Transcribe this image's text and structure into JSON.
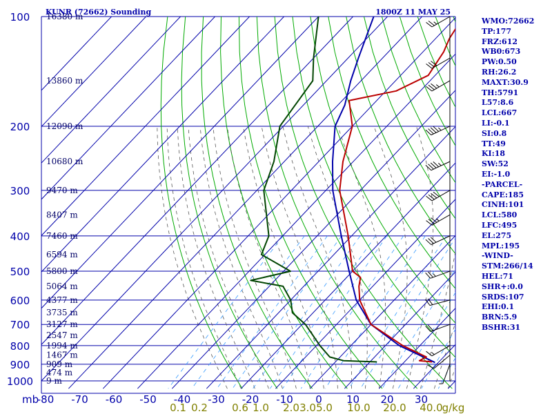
{
  "title_left": "KUNR (72662) Sounding",
  "title_right": "1800Z 11 MAY 25",
  "colors": {
    "grid": "#0000aa",
    "temperature": "#bb0000",
    "dewpoint": "#004400",
    "parcel": "#0000aa",
    "dry_adiabat": "#00aa00",
    "moist_adiabat": "#555555",
    "mixing_ratio": "#3399ff",
    "wind": "#000000",
    "mixing_label": "#808000"
  },
  "chart_data": {
    "type": "skew-t",
    "pressure_levels": [
      100,
      200,
      300,
      400,
      500,
      600,
      700,
      800,
      900,
      1000
    ],
    "pressure_unit": "mb",
    "temperature_ticks": [
      -80,
      -70,
      -60,
      -50,
      -40,
      -30,
      -20,
      -10,
      0,
      10,
      20,
      30
    ],
    "height_labels": [
      {
        "p": 100,
        "label": "16380 m"
      },
      {
        "p": 150,
        "label": "13860 m"
      },
      {
        "p": 200,
        "label": "12090 m"
      },
      {
        "p": 250,
        "label": "10680 m"
      },
      {
        "p": 300,
        "label": "9470 m"
      },
      {
        "p": 350,
        "label": "8407 m"
      },
      {
        "p": 400,
        "label": "7460 m"
      },
      {
        "p": 450,
        "label": "6594 m"
      },
      {
        "p": 500,
        "label": "5800 m"
      },
      {
        "p": 550,
        "label": "5064 m"
      },
      {
        "p": 600,
        "label": "4377 m"
      },
      {
        "p": 650,
        "label": "3735 m"
      },
      {
        "p": 700,
        "label": "3127 m"
      },
      {
        "p": 750,
        "label": "2547 m"
      },
      {
        "p": 800,
        "label": "1994 m"
      },
      {
        "p": 850,
        "label": "1467 m"
      },
      {
        "p": 900,
        "label": "909 m"
      },
      {
        "p": 950,
        "label": "474 m"
      },
      {
        "p": 1000,
        "label": "9 m"
      }
    ],
    "mixing_ratio_labels": [
      "0.1",
      "0.2",
      "0.6",
      "1.0",
      "2.0",
      "3.0",
      "5.0",
      "10.0",
      "20.0",
      "40.0",
      "g/kg"
    ],
    "temperature": [
      {
        "p": 887,
        "t": 28
      },
      {
        "p": 880,
        "t": 24
      },
      {
        "p": 860,
        "t": 25
      },
      {
        "p": 800,
        "t": 15
      },
      {
        "p": 700,
        "t": 0
      },
      {
        "p": 600,
        "t": -10
      },
      {
        "p": 550,
        "t": -14
      },
      {
        "p": 520,
        "t": -16
      },
      {
        "p": 500,
        "t": -20
      },
      {
        "p": 400,
        "t": -31
      },
      {
        "p": 300,
        "t": -46
      },
      {
        "p": 250,
        "t": -53
      },
      {
        "p": 200,
        "t": -60
      },
      {
        "p": 170,
        "t": -68
      },
      {
        "p": 160,
        "t": -57
      },
      {
        "p": 145,
        "t": -52
      },
      {
        "p": 125,
        "t": -54
      },
      {
        "p": 115,
        "t": -56
      },
      {
        "p": 100,
        "t": -58
      }
    ],
    "dewpoint": [
      {
        "p": 887,
        "t": 12
      },
      {
        "p": 880,
        "t": 2
      },
      {
        "p": 860,
        "t": -3
      },
      {
        "p": 800,
        "t": -9
      },
      {
        "p": 700,
        "t": -19
      },
      {
        "p": 650,
        "t": -26
      },
      {
        "p": 600,
        "t": -30
      },
      {
        "p": 550,
        "t": -36
      },
      {
        "p": 530,
        "t": -47
      },
      {
        "p": 500,
        "t": -38
      },
      {
        "p": 450,
        "t": -51
      },
      {
        "p": 400,
        "t": -54
      },
      {
        "p": 300,
        "t": -68
      },
      {
        "p": 250,
        "t": -73
      },
      {
        "p": 200,
        "t": -81
      },
      {
        "p": 150,
        "t": -84
      },
      {
        "p": 130,
        "t": -90
      },
      {
        "p": 100,
        "t": -100
      }
    ],
    "parcel": [
      {
        "p": 890,
        "t": 29
      },
      {
        "p": 800,
        "t": 14
      },
      {
        "p": 700,
        "t": 0
      },
      {
        "p": 600,
        "t": -11
      },
      {
        "p": 500,
        "t": -21
      },
      {
        "p": 400,
        "t": -33
      },
      {
        "p": 300,
        "t": -48
      },
      {
        "p": 250,
        "t": -56
      },
      {
        "p": 200,
        "t": -65
      },
      {
        "p": 175,
        "t": -68
      },
      {
        "p": 150,
        "t": -73
      },
      {
        "p": 130,
        "t": -77
      },
      {
        "p": 100,
        "t": -84
      }
    ],
    "wind_barbs": [
      {
        "p": 100,
        "dir": 240,
        "spd": 25
      },
      {
        "p": 130,
        "dir": 240,
        "spd": 30
      },
      {
        "p": 150,
        "dir": 240,
        "spd": 35
      },
      {
        "p": 200,
        "dir": 245,
        "spd": 45
      },
      {
        "p": 250,
        "dir": 245,
        "spd": 45
      },
      {
        "p": 300,
        "dir": 240,
        "spd": 40
      },
      {
        "p": 350,
        "dir": 240,
        "spd": 35
      },
      {
        "p": 400,
        "dir": 245,
        "spd": 30
      },
      {
        "p": 500,
        "dir": 250,
        "spd": 25
      },
      {
        "p": 600,
        "dir": 255,
        "spd": 20
      },
      {
        "p": 700,
        "dir": 250,
        "spd": 20
      },
      {
        "p": 800,
        "dir": 240,
        "spd": 15
      },
      {
        "p": 850,
        "dir": 230,
        "spd": 10
      },
      {
        "p": 900,
        "dir": 200,
        "spd": 5
      }
    ]
  },
  "indices": [
    "WMO:72662",
    "TP:177",
    "FRZ:612",
    "WB0:673",
    "PW:0.50",
    "RH:26.2",
    "MAXT:30.9",
    "TH:5791",
    "L57:8.6",
    "LCL:667",
    "LI:-0.1",
    "SI:0.8",
    "TT:49",
    "KI:18",
    "SW:52",
    "EI:-1.0",
    "-PARCEL-",
    "CAPE:185",
    "CINH:101",
    "LCL:580",
    "LFC:495",
    "EL:275",
    "MPL:195",
    "-WIND-",
    "STM:266/14",
    "HEL:71",
    "SHR+:0.0",
    "SRDS:107",
    "EHI:0.1",
    "BRN:5.9",
    "BSHR:31"
  ]
}
